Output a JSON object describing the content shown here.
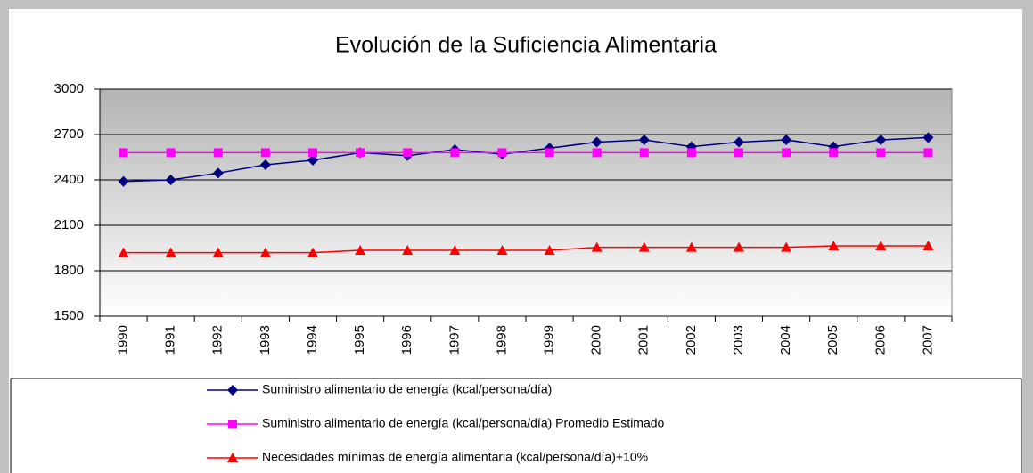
{
  "chart_data": {
    "type": "line",
    "title": "Evolución de la Suficiencia Alimentaria",
    "categories": [
      "1990",
      "1991",
      "1992",
      "1993",
      "1994",
      "1995",
      "1996",
      "1997",
      "1998",
      "1999",
      "2000",
      "2001",
      "2002",
      "2003",
      "2004",
      "2005",
      "2006",
      "2007"
    ],
    "series": [
      {
        "name": "Suministro alimentario de energía (kcal/persona/día)",
        "color": "#000080",
        "marker": "diamond",
        "values": [
          2390,
          2400,
          2445,
          2500,
          2530,
          2580,
          2560,
          2600,
          2570,
          2610,
          2650,
          2665,
          2620,
          2650,
          2665,
          2620,
          2665,
          2680
        ]
      },
      {
        "name": "Suministro alimentario de energía (kcal/persona/día) Promedio Estimado",
        "color": "#ff00ff",
        "marker": "square",
        "values": [
          2580,
          2580,
          2580,
          2580,
          2580,
          2580,
          2580,
          2580,
          2580,
          2580,
          2580,
          2580,
          2580,
          2580,
          2580,
          2580,
          2580,
          2580
        ]
      },
      {
        "name": "Necesidades mínimas de energía alimentaria (kcal/persona/día)+10%",
        "color": "#ff0000",
        "marker": "triangle",
        "values": [
          1920,
          1920,
          1920,
          1920,
          1920,
          1935,
          1935,
          1935,
          1935,
          1935,
          1955,
          1955,
          1955,
          1955,
          1955,
          1965,
          1965,
          1965
        ]
      }
    ],
    "ylim": [
      1500,
      3000
    ],
    "yticks": [
      1500,
      1800,
      2100,
      2400,
      2700,
      3000
    ],
    "grid": true,
    "legend": "bottom"
  }
}
